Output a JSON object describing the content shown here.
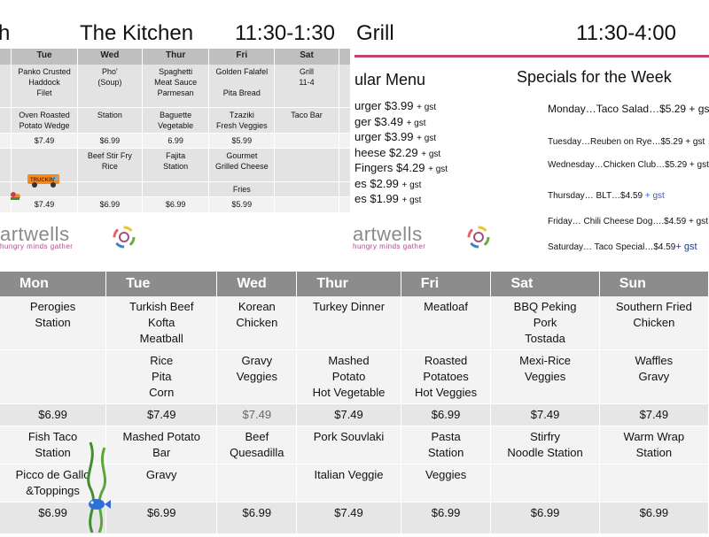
{
  "kitchen": {
    "title_partial": "h",
    "title": "The Kitchen",
    "hours": "11:30-1:30",
    "days": [
      "Tue",
      "Wed",
      "Thur",
      "Fri",
      "Sat"
    ],
    "rows": [
      [
        "Panko Crusted\nHaddock\nFilet",
        "Pho'\n(Soup)",
        "Spaghetti\nMeat Sauce\nParmesan",
        "Golden Falafel\n\nPita Bread",
        "Grill\n11-4"
      ],
      [
        "Oven Roasted\nPotato Wedge",
        "Station",
        "Baguette\nVegetable",
        "Tzaziki\nFresh Veggies",
        "Taco Bar"
      ],
      [
        "$7.49",
        "$6.99",
        "6.99",
        "$5.99",
        ""
      ],
      [
        "",
        "Beef Stir Fry\nRice",
        "Fajita\nStation",
        "Gourmet\nGrilled Cheese",
        ""
      ],
      [
        "",
        "",
        "",
        "Fries",
        ""
      ],
      [
        "$7.49",
        "$6.99",
        "$6.99",
        "$5.99",
        ""
      ]
    ],
    "truck_sign": "TRUCKIN'",
    "logo": {
      "brand": "artwells",
      "tagline": "hungry minds gather"
    }
  },
  "grill": {
    "title": "Grill",
    "hours": "11:30-4:00",
    "menu_heading": "ular Menu",
    "menu_items": [
      {
        "text": "urger $3.99",
        "gst": "+ gst"
      },
      {
        "text": "ger  $3.49",
        "gst": "+ gst"
      },
      {
        "text": "urger $3.99",
        "gst": "+ gst"
      },
      {
        "text": "heese $2.29",
        "gst": "+ gst"
      },
      {
        "text": "Fingers $4.29",
        "gst": "+ gst"
      },
      {
        "text": "es $2.99",
        "gst": "+ gst"
      },
      {
        "text": "es $1.99",
        "gst": "+ gst"
      }
    ],
    "specials_heading": "Specials for the Week",
    "specials": [
      "Monday…Taco Salad…$5.29 + gst",
      "Tuesday…Reuben on Rye…$5.29 + gst",
      "Wednesday…Chicken Club…$5.29 + gst",
      "Thursday… BLT…$4.59",
      "Friday… Chili Cheese Dog….$4.59 + gst",
      "Saturday… Taco Special…$4.59"
    ],
    "thursday_gst": "+ gst",
    "saturday_gst": "+ gst",
    "logo": {
      "brand": "artwells",
      "tagline": "hungry minds gather"
    }
  },
  "dinner": {
    "days": [
      "Mon",
      "Tue",
      "Wed",
      "Thur",
      "Fri",
      "Sat",
      "Sun"
    ],
    "rows": [
      [
        "Perogies\nStation",
        "Turkish Beef\nKofta\nMeatball",
        "Korean\nChicken",
        "Turkey Dinner",
        "Meatloaf",
        "BBQ Peking\nPork\nTostada",
        "Southern Fried\nChicken"
      ],
      [
        "",
        "Rice\nPita\nCorn",
        "Gravy\nVeggies",
        "Mashed\nPotato\nHot Vegetable",
        "Roasted\nPotatoes\nHot Veggies",
        "Mexi-Rice\nVeggies",
        "Waffles\nGravy"
      ],
      [
        "$6.99",
        "$7.49",
        "$7.49",
        "$7.49",
        "$6.99",
        "$7.49",
        "$7.49"
      ],
      [
        "Fish Taco\nStation",
        "Mashed Potato\nBar",
        "Beef\nQuesadilla",
        "Pork Souvlaki",
        "Pasta\nStation",
        "Stirfry\nNoodle Station",
        "Warm Wrap\nStation"
      ],
      [
        "Picco de Gallo\n&Toppings",
        "Gravy",
        "",
        "Italian Veggie",
        "Veggies",
        "",
        ""
      ],
      [
        "$6.99",
        "$6.99",
        "$6.99",
        "$7.49",
        "$6.99",
        "$6.99",
        "$6.99"
      ]
    ]
  },
  "colors": {
    "accent_rule": "#c0446c",
    "header_gray": "#8c8c8c"
  }
}
